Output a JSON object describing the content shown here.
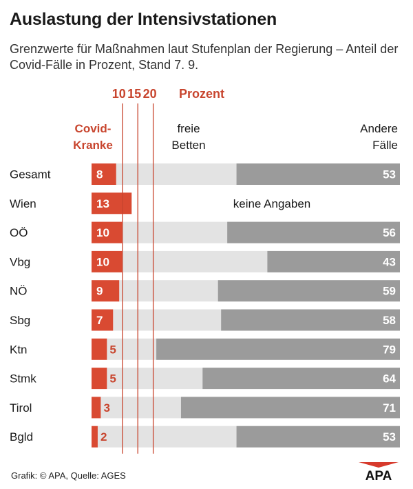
{
  "header": {
    "title": "Auslastung der Intensivstationen",
    "subtitle": "Grenzwerte für Maßnahmen laut Stufenplan der Regierung – Anteil der Covid-Fälle in Prozent, Stand 7. 9."
  },
  "legend": {
    "covid_line1": "Covid-",
    "covid_line2": "Kranke",
    "free_line1": "freie",
    "free_line2": "Betten",
    "other_line1": "Andere",
    "other_line2": "Fälle",
    "threshold_unit": "Prozent",
    "no_data_label": "keine Angaben"
  },
  "footer": {
    "credit": "Grafik: © APA, Quelle: AGES",
    "logo_text": "APA"
  },
  "colors": {
    "covid": "#d94a32",
    "covid_text": "#c8452e",
    "free": "#e3e3e3",
    "other": "#9b9b9b",
    "threshold_line": "#c8452e"
  },
  "chart_data": {
    "type": "bar",
    "stacked": true,
    "unit": "Prozent",
    "xlim": [
      0,
      100
    ],
    "categories": [
      "Gesamt",
      "Wien",
      "OÖ",
      "Vbg",
      "NÖ",
      "Sbg",
      "Ktn",
      "Stmk",
      "Tirol",
      "Bgld"
    ],
    "series": [
      {
        "name": "Covid-Kranke",
        "values": [
          8,
          13,
          10,
          10,
          9,
          7,
          5,
          5,
          3,
          2
        ]
      },
      {
        "name": "freie Betten",
        "values": [
          39,
          null,
          34,
          47,
          32,
          35,
          16,
          31,
          26,
          45
        ]
      },
      {
        "name": "Andere Fälle",
        "values": [
          53,
          null,
          56,
          43,
          59,
          58,
          79,
          64,
          71,
          53
        ]
      }
    ],
    "no_data": [
      "Wien"
    ],
    "thresholds": [
      10,
      15,
      20
    ]
  }
}
